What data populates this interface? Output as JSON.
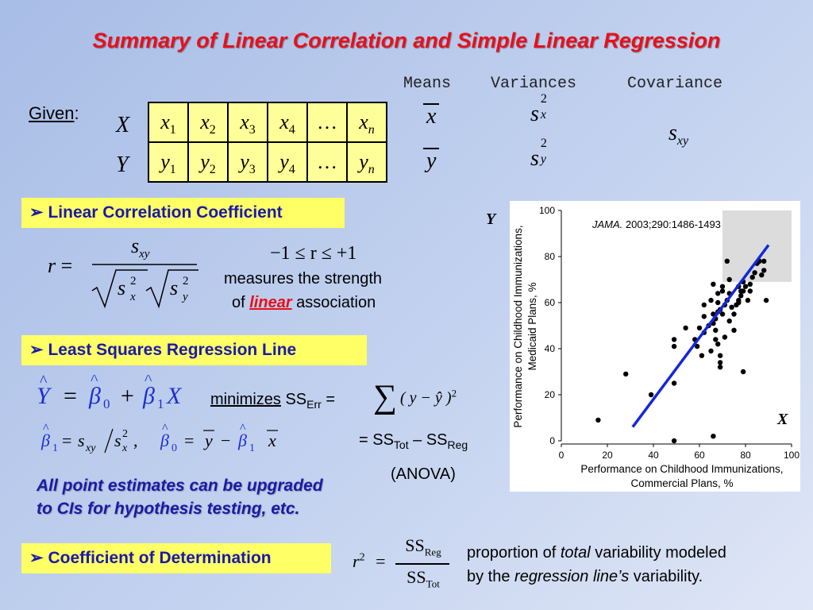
{
  "title": "Summary of Linear Correlation and Simple Linear Regression",
  "columns": {
    "means": "Means",
    "variances": "Variances",
    "covariance": "Covariance"
  },
  "given": {
    "label": "Given",
    "colon": ":"
  },
  "data_table": {
    "row_labels": [
      "X",
      "Y"
    ],
    "x_cells": [
      [
        "x",
        "1"
      ],
      [
        "x",
        "2"
      ],
      [
        "x",
        "3"
      ],
      [
        "x",
        "4"
      ],
      [
        "…",
        ""
      ],
      [
        "x",
        "n"
      ]
    ],
    "y_cells": [
      [
        "y",
        "1"
      ],
      [
        "y",
        "2"
      ],
      [
        "y",
        "3"
      ],
      [
        "y",
        "4"
      ],
      [
        "…",
        ""
      ],
      [
        "y",
        "n"
      ]
    ]
  },
  "stats": {
    "xbar": "x",
    "ybar": "y",
    "sx2": {
      "base": "s",
      "sup": "2",
      "sub": "x"
    },
    "sy2": {
      "base": "s",
      "sup": "2",
      "sub": "y"
    },
    "sxy": {
      "base": "s",
      "sub": "xy"
    }
  },
  "sections": {
    "correlation": {
      "arrow": "➢",
      "label": "Linear Correlation Coefficient"
    },
    "regression": {
      "arrow": "➢",
      "label": "Least Squares Regression Line"
    },
    "determination": {
      "arrow": "➢",
      "label": "Coefficient of Determination"
    }
  },
  "correlation": {
    "r": "r",
    "equals": "=",
    "range": "−1 ≤  r ≤ +1",
    "measures_line": "measures the strength",
    "of": "of",
    "linear": "linear",
    "association": "association"
  },
  "regression": {
    "minimizes": "minimizes",
    "ss": "SS",
    "err": "Err",
    "equals": "=",
    "sum_expr": "( y − ŷ )",
    "sum_sq": "2",
    "decomp_eq": "= SS",
    "tot": "Tot",
    "minus": " – SS",
    "reg": "Reg",
    "anova": "(ANOVA)"
  },
  "note": {
    "line1": "All point estimates can be upgraded",
    "line2": "to CIs for hypothesis testing, etc."
  },
  "determination": {
    "r2": "r",
    "r2_sup": "2",
    "equals": "=",
    "num": "SS",
    "num_sub": "Reg",
    "den": "SS",
    "den_sub": "Tot",
    "text1_a": "proportion of ",
    "text1_b": "total",
    "text1_c": " variability modeled",
    "text2_a": "by the ",
    "text2_b": "regression line’s",
    "text2_c": " variability."
  },
  "chart_data": {
    "type": "scatter",
    "citation_journal": "JAMA.",
    "citation_rest": " 2003;290:1486-1493",
    "xlabel": "Performance on Childhood Immunizations, Commercial Plans, %",
    "xlabel_lines": [
      "Performance on Childhood Immunizations,",
      "Commercial Plans, %"
    ],
    "ylabel_lines": [
      "Performance on Childhood Immunizations,",
      "Medicaid Plans, %"
    ],
    "x_axis_name": "X",
    "y_axis_name": "Y",
    "xlim": [
      0,
      100
    ],
    "ylim": [
      0,
      100
    ],
    "xticks": [
      0,
      20,
      40,
      60,
      80,
      100
    ],
    "yticks": [
      0,
      20,
      40,
      60,
      80,
      100
    ],
    "grid": false,
    "shaded_region": {
      "x": [
        70,
        100
      ],
      "y": [
        69,
        100
      ]
    },
    "regression_line": {
      "x": [
        31,
        90
      ],
      "y": [
        6,
        85
      ]
    },
    "points": [
      [
        16,
        9
      ],
      [
        28,
        29
      ],
      [
        39,
        20
      ],
      [
        49,
        44
      ],
      [
        49,
        41
      ],
      [
        49,
        25
      ],
      [
        49,
        0
      ],
      [
        54,
        49
      ],
      [
        58,
        44
      ],
      [
        60,
        49
      ],
      [
        59,
        41
      ],
      [
        61,
        37
      ],
      [
        62,
        54
      ],
      [
        62,
        47
      ],
      [
        62,
        59
      ],
      [
        64,
        50
      ],
      [
        65,
        39
      ],
      [
        65,
        61
      ],
      [
        66,
        68
      ],
      [
        66,
        55
      ],
      [
        66,
        51
      ],
      [
        66,
        2
      ],
      [
        67,
        44
      ],
      [
        67,
        48
      ],
      [
        67,
        53
      ],
      [
        68,
        56
      ],
      [
        68,
        42
      ],
      [
        68,
        60
      ],
      [
        68,
        64
      ],
      [
        69,
        57
      ],
      [
        69,
        37
      ],
      [
        69,
        32
      ],
      [
        69,
        34
      ],
      [
        70,
        55
      ],
      [
        70,
        65
      ],
      [
        70,
        67
      ],
      [
        71,
        45
      ],
      [
        71,
        59
      ],
      [
        72,
        61
      ],
      [
        72,
        78
      ],
      [
        73,
        52
      ],
      [
        73,
        64
      ],
      [
        73,
        70
      ],
      [
        74,
        58
      ],
      [
        75,
        48
      ],
      [
        75,
        55
      ],
      [
        76,
        59
      ],
      [
        77,
        61
      ],
      [
        77,
        67
      ],
      [
        77,
        60
      ],
      [
        78,
        63
      ],
      [
        78,
        65
      ],
      [
        79,
        65
      ],
      [
        79,
        69
      ],
      [
        79,
        30
      ],
      [
        80,
        67
      ],
      [
        81,
        61
      ],
      [
        82,
        65
      ],
      [
        82,
        68
      ],
      [
        83,
        71
      ],
      [
        84,
        73
      ],
      [
        85,
        77
      ],
      [
        86,
        78
      ],
      [
        87,
        72
      ],
      [
        88,
        78
      ],
      [
        88,
        74
      ],
      [
        89,
        61
      ]
    ]
  }
}
